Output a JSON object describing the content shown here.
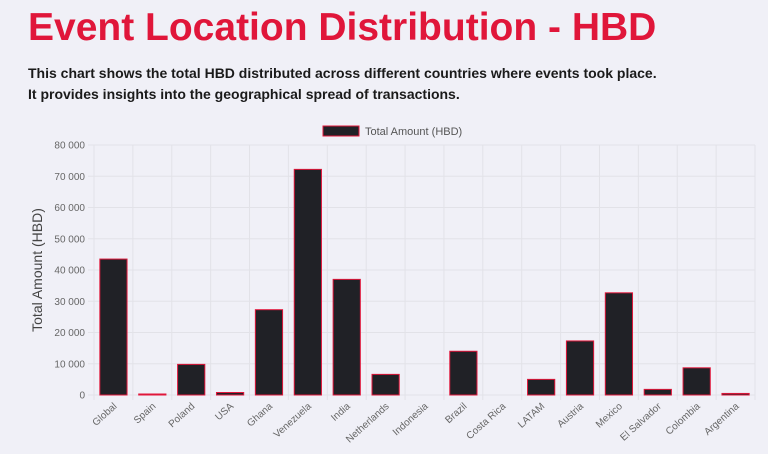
{
  "title": "Event Location Distribution - HBD",
  "description": [
    "This chart shows the total HBD distributed across different countries where events took place.",
    "It provides insights into the geographical spread of transactions."
  ],
  "colors": {
    "title": "#e0163a",
    "bar_fill": "#202126",
    "bar_border": "#e0163a",
    "grid": "#e2e2e8"
  },
  "chart_data": {
    "type": "bar",
    "categories": [
      "Global",
      "Spain",
      "Poland",
      "USA",
      "Ghana",
      "Venezuela",
      "India",
      "Netherlands",
      "Indonesia",
      "Brazil",
      "Costa Rica",
      "LATAM",
      "Austria",
      "Mexico",
      "El Salvador",
      "Colombia",
      "Argentina"
    ],
    "series": [
      {
        "name": "Total Amount (HBD)",
        "values": [
          43500,
          150,
          9800,
          800,
          27300,
          72200,
          37000,
          6600,
          0,
          14000,
          0,
          5000,
          17300,
          32700,
          1800,
          8700,
          500
        ]
      }
    ],
    "ylabel": "Total Amount (HBD)",
    "xlabel": "",
    "ylim": [
      0,
      80000
    ],
    "yticks": [
      0,
      10000,
      20000,
      30000,
      40000,
      50000,
      60000,
      70000,
      80000
    ],
    "ytick_labels": [
      "0",
      "10 000",
      "20 000",
      "30 000",
      "40 000",
      "50 000",
      "60 000",
      "70 000",
      "80 000"
    ],
    "grid": true,
    "legend": "top-center"
  }
}
